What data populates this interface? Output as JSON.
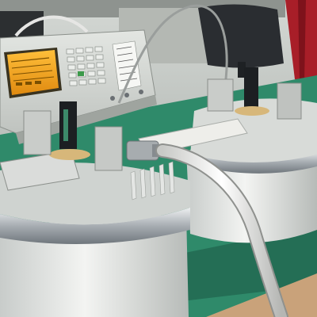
{
  "scene": {
    "subject": "laboratory-bench-with-rf-test-fixtures",
    "colors": {
      "wall": "#c9cdca",
      "bench_green": "#2f8a6a",
      "bench_wood": "#c9a27a",
      "housing_white": "#e6e8e6",
      "steel_rim": "#b9bec2",
      "lcd_orange": "#f0a020",
      "instrument_grey": "#d7dad6",
      "cable_white": "#f2f2f0",
      "curtain_red": "#b0202a"
    }
  }
}
